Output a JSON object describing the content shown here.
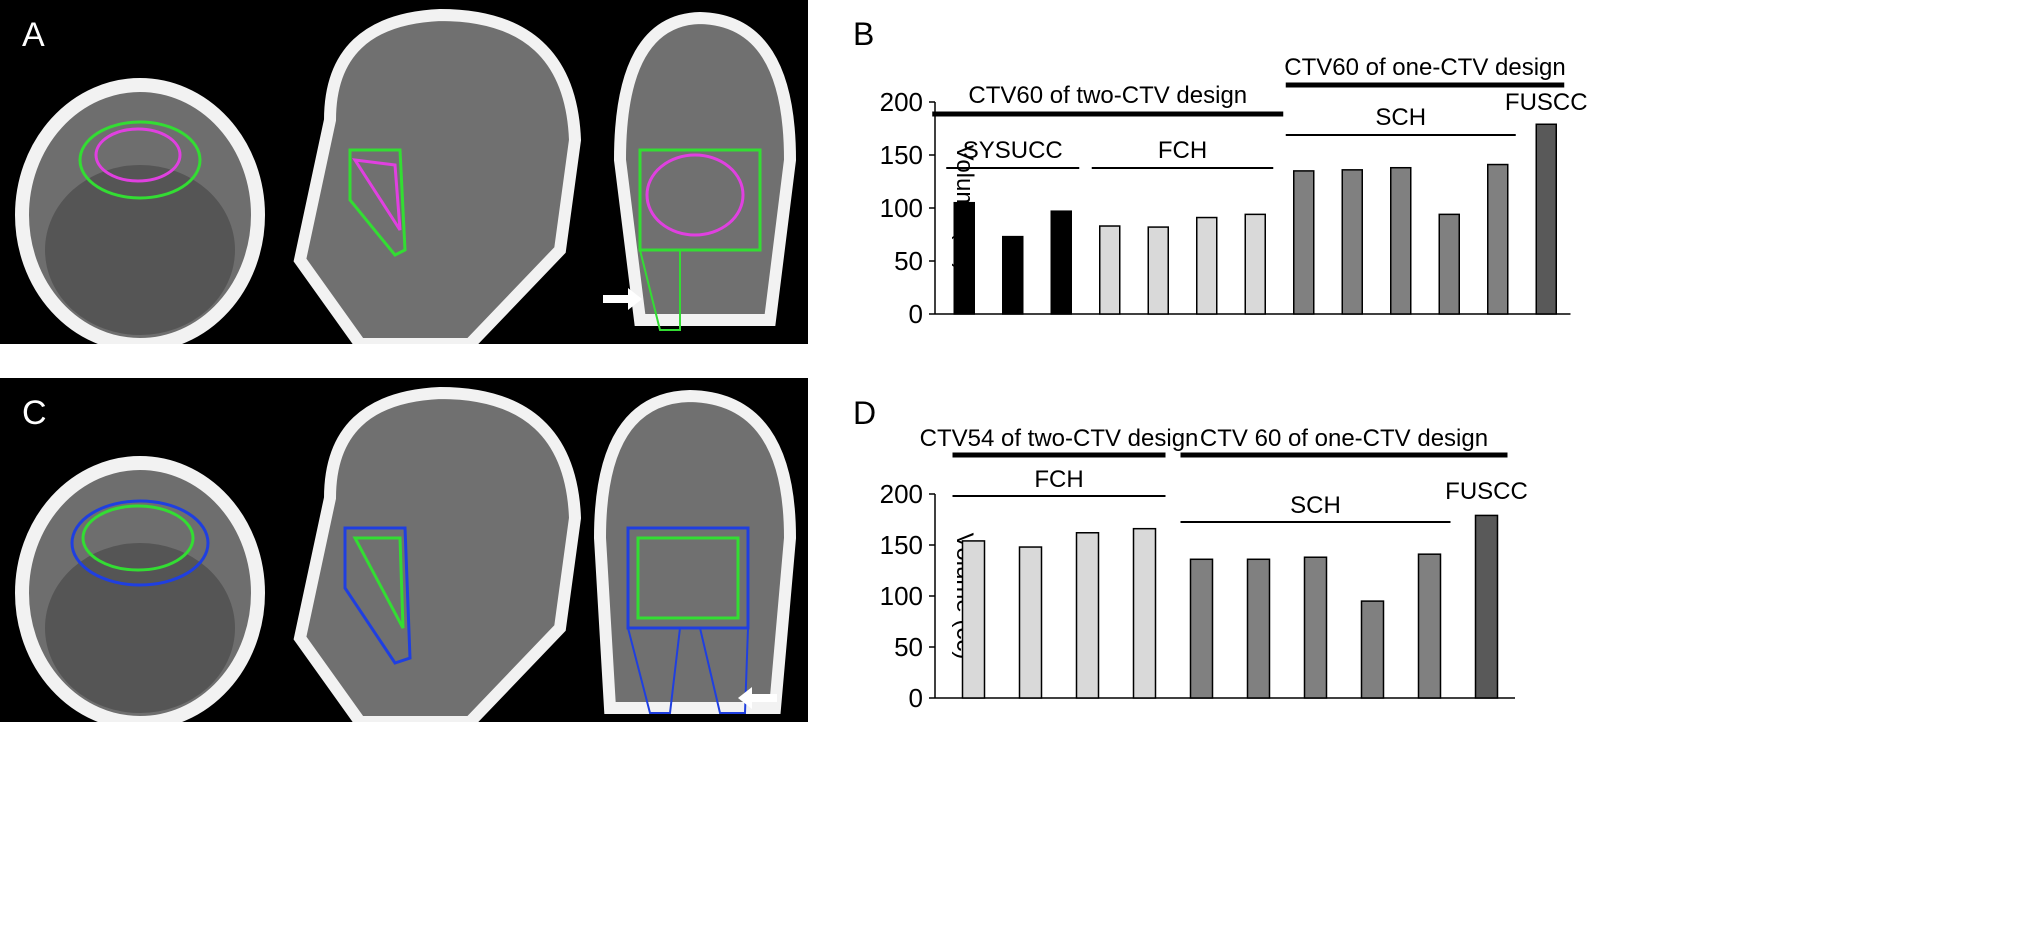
{
  "panels": {
    "A": "A",
    "B": "B",
    "C": "C",
    "D": "D"
  },
  "colors": {
    "black_bar": "#000000",
    "light_bar": "#d9d9d9",
    "mid_bar": "#808080",
    "dark_bar": "#595959",
    "contour_green": "#33dd33",
    "contour_magenta": "#e040e0",
    "contour_blue": "#1f3fe0"
  },
  "chart_data": [
    {
      "type": "bar",
      "panel": "B",
      "ylabel": "Volume (cc)",
      "ylim": [
        0,
        200
      ],
      "yticks": [
        0,
        50,
        100,
        150,
        200
      ],
      "values": [
        105,
        73,
        97,
        83,
        82,
        91,
        94,
        135,
        136,
        138,
        94,
        141,
        179
      ],
      "bar_colors": [
        "black_bar",
        "black_bar",
        "black_bar",
        "light_bar",
        "light_bar",
        "light_bar",
        "light_bar",
        "mid_bar",
        "mid_bar",
        "mid_bar",
        "mid_bar",
        "mid_bar",
        "dark_bar"
      ],
      "annotations": [
        {
          "text": "CTV60 of two-CTV design",
          "from": 0,
          "to": 6,
          "thick": true,
          "level": "high"
        },
        {
          "text": "SYSUCC",
          "from": 0,
          "to": 2,
          "thick": false,
          "level": "low"
        },
        {
          "text": "FCH",
          "from": 3,
          "to": 6,
          "thick": false,
          "level": "low"
        },
        {
          "text": "CTV60 of one-CTV design",
          "from": 7,
          "to": 12,
          "thick": true,
          "level": "top"
        },
        {
          "text": "SCH",
          "from": 7,
          "to": 11,
          "thick": false,
          "level": "mid"
        },
        {
          "text": "FUSCC",
          "from": 12,
          "to": 12,
          "thick": false,
          "level": "label-only"
        }
      ]
    },
    {
      "type": "bar",
      "panel": "D",
      "ylabel": "Volume (cc)",
      "ylim": [
        0,
        200
      ],
      "yticks": [
        0,
        50,
        100,
        150,
        200
      ],
      "values": [
        154,
        148,
        162,
        166,
        136,
        136,
        138,
        95,
        141,
        179
      ],
      "bar_colors": [
        "light_bar",
        "light_bar",
        "light_bar",
        "light_bar",
        "mid_bar",
        "mid_bar",
        "mid_bar",
        "mid_bar",
        "mid_bar",
        "dark_bar"
      ],
      "annotations": [
        {
          "text": "CTV54 of two-CTV design",
          "from": 0,
          "to": 3,
          "thick": true,
          "level": "top"
        },
        {
          "text": "FCH",
          "from": 0,
          "to": 3,
          "thick": false,
          "level": "mid"
        },
        {
          "text": "CTV 60 of one-CTV design",
          "from": 4,
          "to": 9,
          "thick": true,
          "level": "top"
        },
        {
          "text": "SCH",
          "from": 4,
          "to": 8,
          "thick": false,
          "level": "low"
        },
        {
          "text": "FUSCC",
          "from": 9,
          "to": 9,
          "thick": false,
          "level": "label-only"
        }
      ]
    }
  ]
}
